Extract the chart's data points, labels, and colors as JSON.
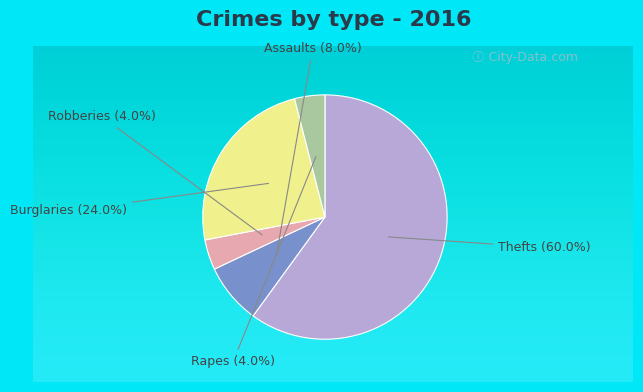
{
  "title": "Crimes by type - 2016",
  "labels": [
    "Thefts",
    "Assaults",
    "Robberies",
    "Burglaries",
    "Rapes"
  ],
  "values": [
    60.0,
    8.0,
    4.0,
    24.0,
    4.0
  ],
  "colors": [
    "#b8a8d8",
    "#7890cc",
    "#e8a8b0",
    "#f0f08c",
    "#aac8a0"
  ],
  "label_texts": [
    "Thefts (60.0%)",
    "Assaults (8.0%)",
    "Robberies (4.0%)",
    "Burglaries (24.0%)",
    "Rapes (4.0%)"
  ],
  "background_top": "#00e8f8",
  "background_main_top": "#d0ece0",
  "background_main_bottom": "#e8f4f0",
  "title_fontsize": 16,
  "label_fontsize": 9,
  "watermark": "ⓘ City-Data.com",
  "startangle": 90
}
